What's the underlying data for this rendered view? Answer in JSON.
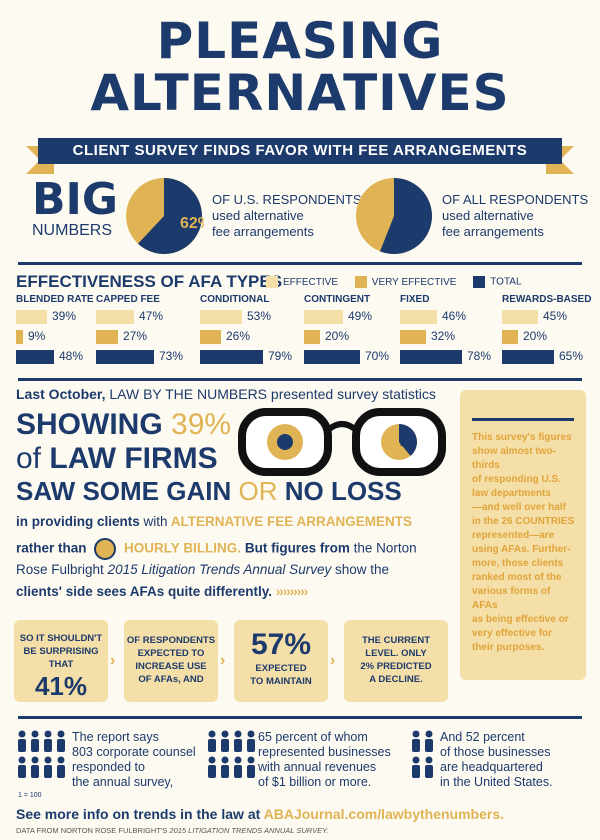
{
  "title": {
    "line1": "PLEASING",
    "line2": "ALTERNATIVES"
  },
  "banner": "CLIENT SURVEY FINDS FAVOR WITH FEE ARRANGEMENTS",
  "big_numbers": {
    "big": "BIG",
    "numbers": "NUMBERS"
  },
  "pie1": {
    "percent_value": 62,
    "percent_label": "62%",
    "text_line1": "OF U.S. RESPONDENTS",
    "text_line2": "used alternative",
    "text_line3": "fee arrangements"
  },
  "pie2": {
    "percent_value": 56,
    "percent_label": "56%",
    "text_line1": "OF ALL RESPONDENTS",
    "text_line2": "used alternative",
    "text_line3": "fee arrangements"
  },
  "colors": {
    "navy": "#1c3a6b",
    "gold": "#e0b455",
    "light": "#f5dfa8"
  },
  "afa": {
    "title": "EFFECTIVENESS OF AFA TYPES",
    "legend": [
      "EFFECTIVE",
      "VERY EFFECTIVE",
      "TOTAL"
    ],
    "types": [
      {
        "name": "BLENDED RATE",
        "effective": 39,
        "very": 9,
        "total": 48,
        "effective_label": "39%",
        "very_label": "9%",
        "total_label": "48%"
      },
      {
        "name": "CAPPED FEE",
        "effective": 47,
        "very": 27,
        "total": 73,
        "effective_label": "47%",
        "very_label": "27%",
        "total_label": "73%"
      },
      {
        "name": "CONDITIONAL",
        "effective": 53,
        "very": 26,
        "total": 79,
        "effective_label": "53%",
        "very_label": "26%",
        "total_label": "79%"
      },
      {
        "name": "CONTINGENT",
        "effective": 49,
        "very": 20,
        "total": 70,
        "effective_label": "49%",
        "very_label": "20%",
        "total_label": "70%"
      },
      {
        "name": "FIXED",
        "effective": 46,
        "very": 32,
        "total": 78,
        "effective_label": "46%",
        "very_label": "32%",
        "total_label": "78%"
      },
      {
        "name": "REWARDS-BASED",
        "effective": 45,
        "very": 20,
        "total": 65,
        "effective_label": "45%",
        "very_label": "20%",
        "total_label": "65%"
      }
    ]
  },
  "story": {
    "intro_bold": "Last October,",
    "intro_rest": "LAW BY THE NUMBERS presented survey statistics",
    "showing": "SHOWING",
    "showing_pct": "39%",
    "of": "of",
    "law_firms": "LAW FIRMS",
    "saw_gain": "SAW SOME GAIN",
    "or": "OR",
    "no_loss": "NO LOSS",
    "line_a1": "in providing clients",
    "line_a2": "with",
    "line_a3": "ALTERNATIVE FEE ARRANGEMENTS",
    "line_b1": "rather than",
    "line_b2": "HOURLY BILLING.",
    "line_b3": "But figures from",
    "line_b4": "the Norton",
    "line_c1": "Rose Fulbright",
    "line_c2": "2015 Litigation Trends Annual Survey",
    "line_c3": "show the",
    "line_d1": "clients' side sees AFAs quite differently.",
    "lens_label": "39%"
  },
  "sidebox": {
    "lines": [
      "This survey's figures",
      "show almost two-thirds",
      "of responding U.S.",
      "law departments",
      "—and well over half",
      "in the 26 COUNTRIES",
      "represented—are",
      "using AFAs. Further-",
      "more, those clients",
      "ranked most of the",
      "various forms of AFAs",
      "as being effective or",
      "very effective for",
      "their purposes."
    ]
  },
  "cards": [
    {
      "top": "SO IT SHOULDN'T",
      "top2": "BE SURPRISING",
      "top3": "THAT",
      "big": "41%"
    },
    {
      "top": "OF RESPONDENTS",
      "top2": "EXPECTED TO",
      "top3": "INCREASE USE",
      "top4": "OF AFAs, AND"
    },
    {
      "big": "57%",
      "bottom": "EXPECTED",
      "bottom2": "TO MAINTAIN"
    },
    {
      "top": "THE CURRENT",
      "top2": "LEVEL. ONLY",
      "top3": "2% PREDICTED",
      "top4": "A DECLINE."
    }
  ],
  "bottom_facts": [
    {
      "l1": "The report says",
      "l2": "803 corporate counsel",
      "l3": "responded to",
      "l4": "the annual survey,"
    },
    {
      "l1": "65 percent of whom",
      "l2": "represented businesses",
      "l3": "with annual revenues",
      "l4": "of $1 billion or more."
    },
    {
      "l1": "And 52 percent",
      "l2": "of those businesses",
      "l3": "are headquartered",
      "l4": "in the United States."
    }
  ],
  "icon_key": "1 = 100",
  "footer": {
    "see_more": "See more info on trends in the law at",
    "url": "ABAJournal.com/lawbythenumbers.",
    "source_1": "DATA FROM NORTON ROSE FULBRIGHT'S",
    "source_2": "2015 LITIGATION TRENDS ANNUAL SURVEY."
  }
}
